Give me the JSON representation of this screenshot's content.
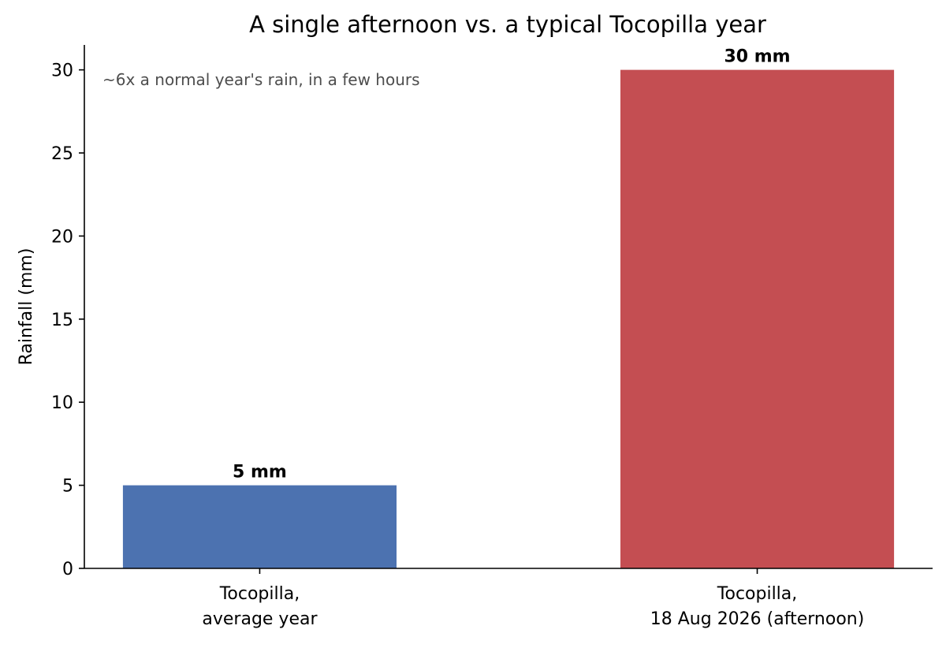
{
  "chart_data": {
    "type": "bar",
    "title": "A single afternoon vs. a typical Tocopilla year",
    "xlabel": "",
    "ylabel": "Rainfall (mm)",
    "ylim": [
      0,
      31.5
    ],
    "yticks": [
      0,
      5,
      10,
      15,
      20,
      25,
      30
    ],
    "categories": [
      [
        "Tocopilla,",
        "average year"
      ],
      [
        "Tocopilla,",
        "18 Aug 2026 (afternoon)"
      ]
    ],
    "values": [
      5,
      30
    ],
    "value_labels": [
      "5 mm",
      "30 mm"
    ],
    "colors": [
      "#4c72b0",
      "#c44e52"
    ],
    "annotation": "~6x a normal year's rain, in a few hours",
    "annotation_position": "top-left",
    "grid": false,
    "legend": "none"
  }
}
